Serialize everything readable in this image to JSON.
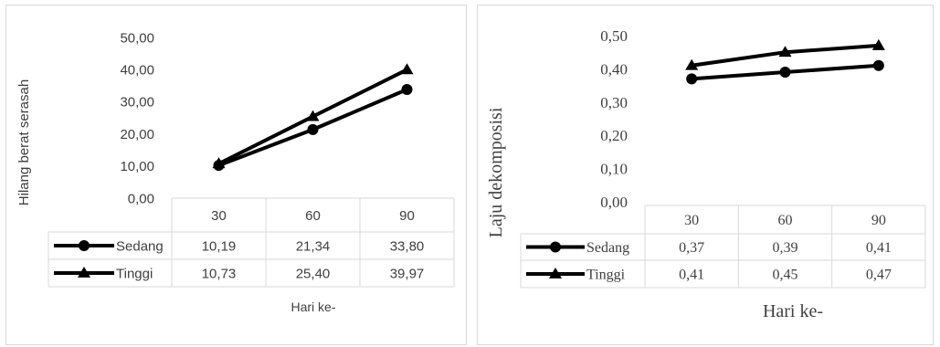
{
  "chart_data": [
    {
      "type": "line",
      "title": "",
      "xlabel": "Hari ke-",
      "ylabel": "Hilang berat serasah",
      "categories": [
        "30",
        "60",
        "90"
      ],
      "ylim": [
        0,
        50
      ],
      "yticks": [
        "0,00",
        "10,00",
        "20,00",
        "30,00",
        "40,00",
        "50,00"
      ],
      "grid": false,
      "legend": "data-table",
      "series": [
        {
          "name": "Sedang",
          "marker": "circle",
          "values": [
            10.19,
            21.34,
            33.8
          ],
          "labels": [
            "10,19",
            "21,34",
            "33,80"
          ]
        },
        {
          "name": "Tinggi",
          "marker": "triangle",
          "values": [
            10.73,
            25.4,
            39.97
          ],
          "labels": [
            "10,73",
            "25,40",
            "39,97"
          ]
        }
      ],
      "colors": {
        "line": "#000000",
        "text": "#404040",
        "border": "#d9d9d9"
      }
    },
    {
      "type": "line",
      "title": "",
      "xlabel": "Hari ke-",
      "ylabel": "Laju dekomposisi",
      "categories": [
        "30",
        "60",
        "90"
      ],
      "ylim": [
        0,
        0.5
      ],
      "yticks": [
        "0,00",
        "0,10",
        "0,20",
        "0,30",
        "0,40",
        "0,50"
      ],
      "grid": false,
      "legend": "data-table",
      "series": [
        {
          "name": "Sedang",
          "marker": "circle",
          "values": [
            0.37,
            0.39,
            0.41
          ],
          "labels": [
            "0,37",
            "0,39",
            "0,41"
          ]
        },
        {
          "name": "Tinggi",
          "marker": "triangle",
          "values": [
            0.41,
            0.45,
            0.47
          ],
          "labels": [
            "0,41",
            "0,45",
            "0,47"
          ]
        }
      ],
      "colors": {
        "line": "#000000",
        "text": "#404040",
        "border": "#d9d9d9"
      }
    }
  ]
}
